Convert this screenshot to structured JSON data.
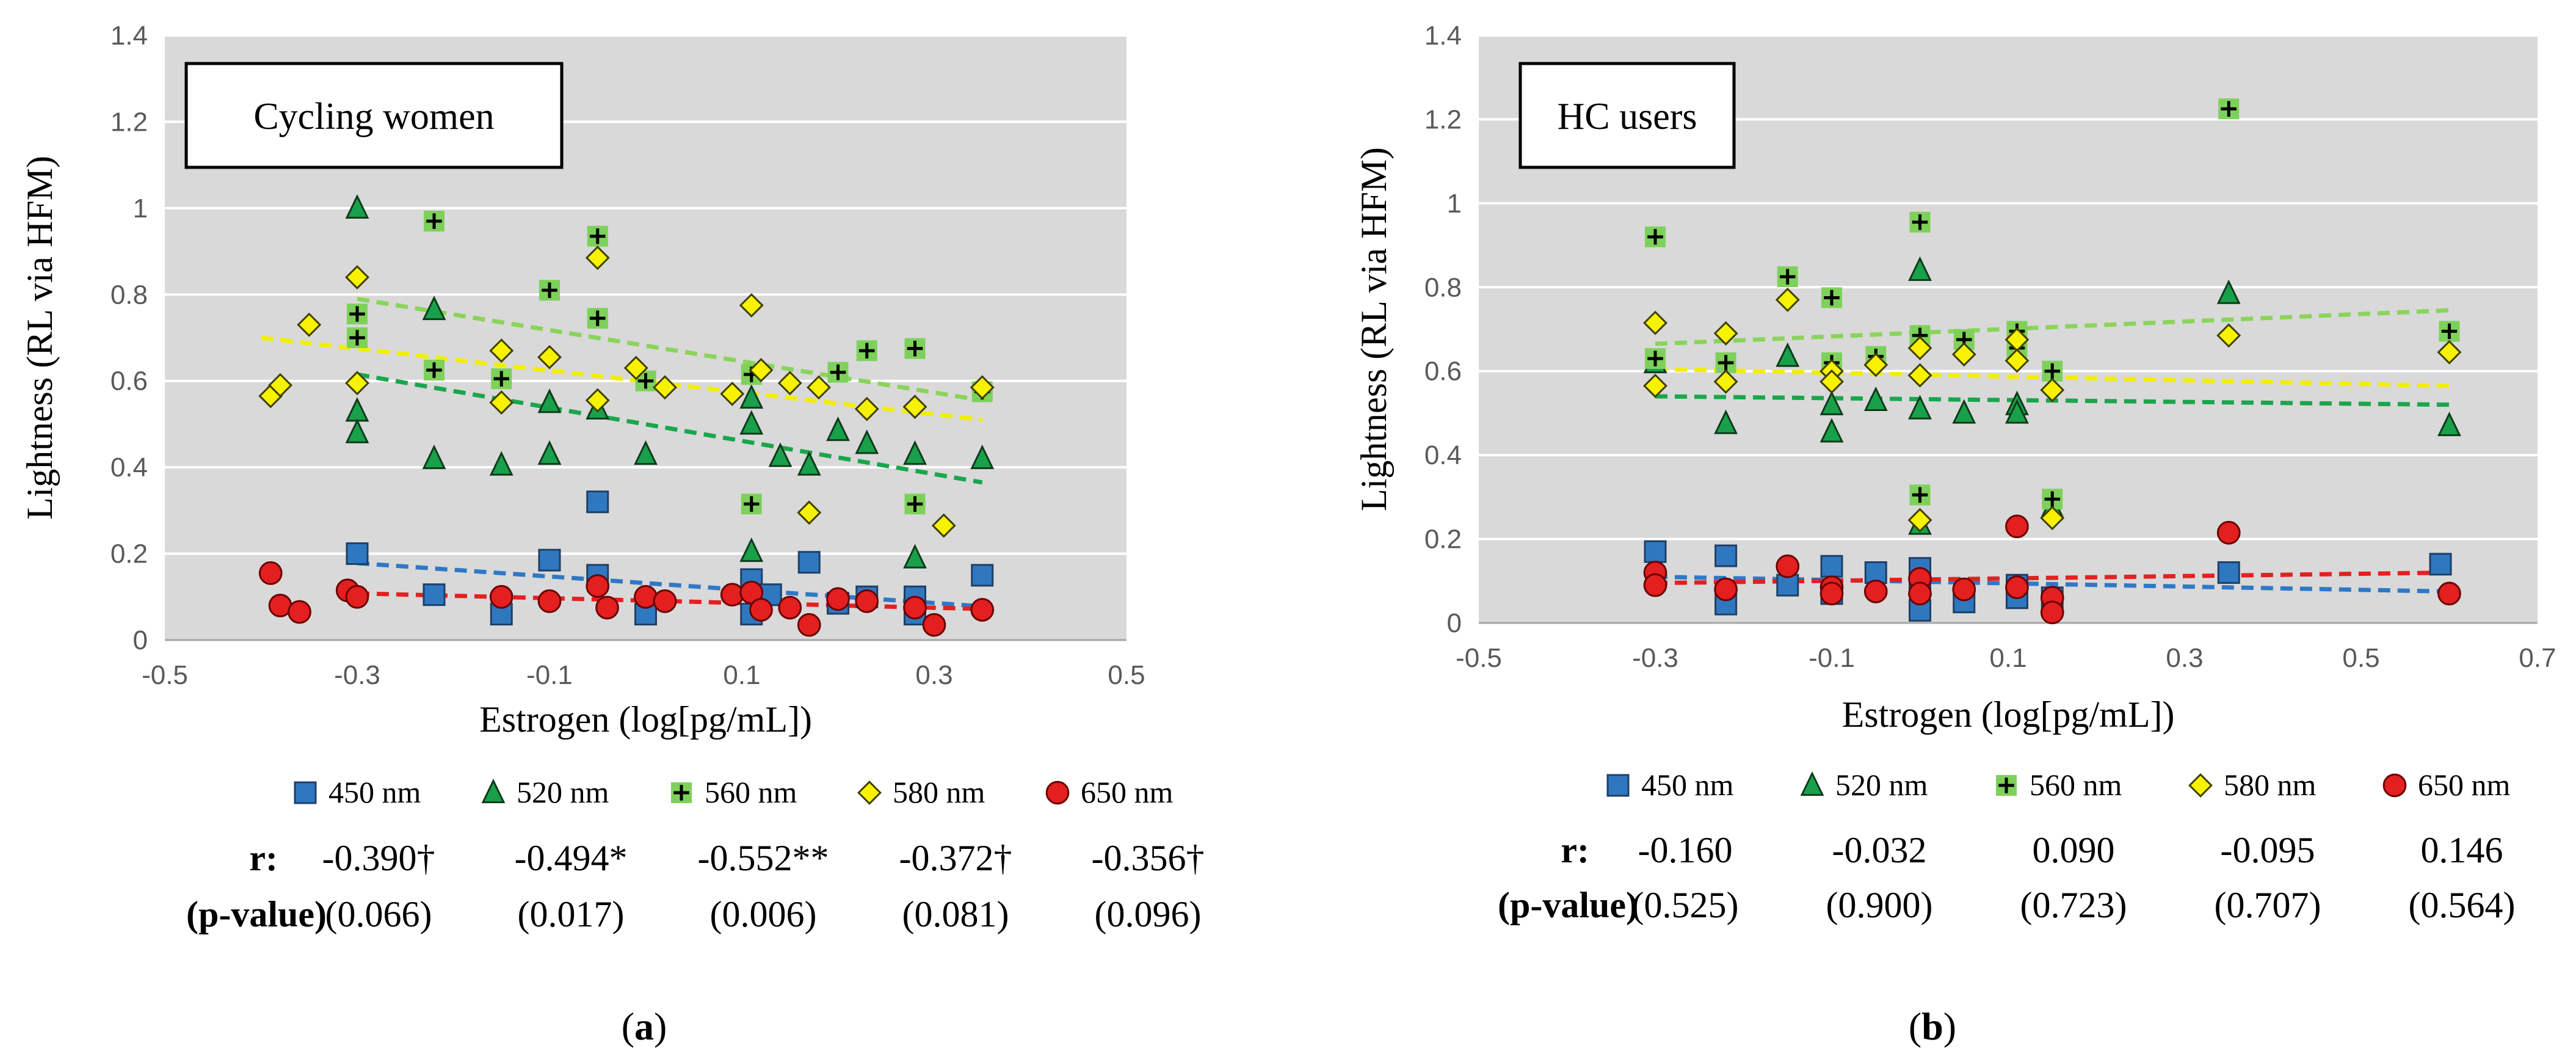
{
  "colors": {
    "plot_bg": "#d9d9d9",
    "grid": "#ffffff",
    "450 nm": "#2f78c0",
    "520 nm": "#19a04a",
    "560 nm": "#7dd15a",
    "580 nm": "#f7f200",
    "650 nm": "#e31f1f",
    "trend_450": "#2e79c6",
    "trend_520": "#1aa64c",
    "trend_560": "#8ad45a",
    "trend_580": "#f2ee00",
    "trend_650": "#e52020"
  },
  "panels": [
    {
      "label": "(a)",
      "label_letter": "a",
      "inset_title": "Cycling women",
      "stats": {
        "r_label": "r:",
        "p_label": "(p-value)",
        "r_values": [
          "-0.390†",
          "-0.494*",
          "-0.552**",
          "-0.372†",
          "-0.356†"
        ],
        "p_values": [
          "(0.066)",
          "(0.017)",
          "(0.006)",
          "(0.081)",
          "(0.096)"
        ]
      }
    },
    {
      "label": "(b)",
      "label_letter": "b",
      "inset_title": "HC users",
      "stats": {
        "r_label": "r:",
        "p_label": "(p-value)",
        "r_values": [
          "-0.160",
          "-0.032",
          "0.090",
          "-0.095",
          "0.146"
        ],
        "p_values": [
          "(0.525)",
          "(0.900)",
          "(0.723)",
          "(0.707)",
          "(0.564)"
        ]
      }
    }
  ],
  "chart_data": [
    {
      "type": "scatter",
      "title": "Cycling women",
      "xlabel": "Estrogen (log[pg/mL])",
      "ylabel": "Lightness (RL via HFM)",
      "xlim": [
        -0.5,
        0.5
      ],
      "ylim": [
        0,
        1.4
      ],
      "xticks": [
        -0.5,
        -0.3,
        -0.1,
        0.1,
        0.3,
        0.5
      ],
      "yticks": [
        0,
        0.2,
        0.4,
        0.6,
        0.8,
        1,
        1.2,
        1.4
      ],
      "xtick_labels": [
        "-0.5",
        "-0.3",
        "-0.1",
        "0.1",
        "0.3",
        "0.5"
      ],
      "ytick_labels": [
        "0",
        "0.2",
        "0.4",
        "0.6",
        "0.8",
        "1",
        "1.2",
        "1.4"
      ],
      "grid": true,
      "legend_position": "bottom",
      "series": [
        {
          "name": "450 nm",
          "marker": "square",
          "x": [
            -0.3,
            -0.22,
            -0.15,
            -0.1,
            -0.05,
            -0.05,
            0.0,
            0.11,
            0.11,
            0.13,
            0.17,
            0.2,
            0.23,
            0.28,
            0.28,
            0.35
          ],
          "y": [
            0.2,
            0.105,
            0.06,
            0.185,
            0.15,
            0.32,
            0.06,
            0.14,
            0.06,
            0.105,
            0.18,
            0.085,
            0.1,
            0.1,
            0.06,
            0.15
          ],
          "trend": [
            [
              -0.3,
              0.178
            ],
            [
              0.35,
              0.078
            ]
          ]
        },
        {
          "name": "520 nm",
          "marker": "triangle",
          "x": [
            -0.3,
            -0.3,
            -0.3,
            -0.22,
            -0.22,
            -0.15,
            -0.1,
            -0.1,
            -0.05,
            0.0,
            0.11,
            0.11,
            0.11,
            0.14,
            0.17,
            0.2,
            0.23,
            0.28,
            0.28,
            0.35
          ],
          "y": [
            1.0,
            0.53,
            0.48,
            0.765,
            0.42,
            0.405,
            0.55,
            0.43,
            0.535,
            0.43,
            0.56,
            0.5,
            0.205,
            0.425,
            0.405,
            0.485,
            0.455,
            0.43,
            0.19,
            0.42
          ],
          "trend": [
            [
              -0.3,
              0.615
            ],
            [
              0.35,
              0.365
            ]
          ]
        },
        {
          "name": "560 nm",
          "marker": "plus-square",
          "x": [
            -0.3,
            -0.3,
            -0.22,
            -0.22,
            -0.15,
            -0.1,
            -0.05,
            -0.05,
            0.0,
            0.11,
            0.11,
            0.2,
            0.23,
            0.28,
            0.28,
            0.35
          ],
          "y": [
            0.755,
            0.7,
            0.97,
            0.625,
            0.605,
            0.81,
            0.935,
            0.745,
            0.6,
            0.615,
            0.315,
            0.62,
            0.67,
            0.675,
            0.315,
            0.575
          ],
          "trend": [
            [
              -0.3,
              0.79
            ],
            [
              0.35,
              0.555
            ]
          ]
        },
        {
          "name": "580 nm",
          "marker": "diamond",
          "x": [
            -0.39,
            -0.38,
            -0.35,
            -0.3,
            -0.3,
            -0.15,
            -0.15,
            -0.1,
            -0.05,
            -0.05,
            -0.01,
            0.02,
            0.09,
            0.11,
            0.12,
            0.15,
            0.17,
            0.18,
            0.23,
            0.28,
            0.31,
            0.35
          ],
          "y": [
            0.565,
            0.59,
            0.73,
            0.84,
            0.595,
            0.67,
            0.55,
            0.655,
            0.885,
            0.555,
            0.63,
            0.585,
            0.57,
            0.775,
            0.625,
            0.595,
            0.295,
            0.585,
            0.535,
            0.54,
            0.265,
            0.585
          ],
          "trend": [
            [
              -0.4,
              0.7
            ],
            [
              0.35,
              0.51
            ]
          ]
        },
        {
          "name": "650 nm",
          "marker": "circle",
          "x": [
            -0.39,
            -0.38,
            -0.36,
            -0.31,
            -0.3,
            -0.15,
            -0.1,
            -0.05,
            -0.04,
            0.0,
            0.02,
            0.09,
            0.11,
            0.12,
            0.15,
            0.17,
            0.2,
            0.23,
            0.28,
            0.3,
            0.35
          ],
          "y": [
            0.155,
            0.08,
            0.065,
            0.115,
            0.1,
            0.1,
            0.09,
            0.125,
            0.075,
            0.1,
            0.09,
            0.105,
            0.11,
            0.07,
            0.075,
            0.035,
            0.095,
            0.09,
            0.075,
            0.035,
            0.07
          ],
          "trend": [
            [
              -0.3,
              0.108
            ],
            [
              0.35,
              0.072
            ]
          ]
        }
      ]
    },
    {
      "type": "scatter",
      "title": "HC users",
      "xlabel": "Estrogen (log[pg/mL])",
      "ylabel": "Lightness (RL via HFM)",
      "xlim": [
        -0.5,
        0.7
      ],
      "ylim": [
        0,
        1.4
      ],
      "xticks": [
        -0.5,
        -0.3,
        -0.1,
        0.1,
        0.3,
        0.5,
        0.7
      ],
      "yticks": [
        0,
        0.2,
        0.4,
        0.6,
        0.8,
        1,
        1.2,
        1.4
      ],
      "xtick_labels": [
        "-0.5",
        "-0.3",
        "-0.1",
        "0.1",
        "0.3",
        "0.5",
        "0.7"
      ],
      "ytick_labels": [
        "0",
        "0.2",
        "0.4",
        "0.6",
        "0.8",
        "1",
        "1.2",
        "1.4"
      ],
      "grid": true,
      "legend_position": "bottom",
      "series": [
        {
          "name": "450 nm",
          "marker": "square",
          "x": [
            -0.3,
            -0.22,
            -0.22,
            -0.15,
            -0.1,
            -0.1,
            -0.05,
            0.0,
            0.0,
            0.0,
            0.05,
            0.11,
            0.11,
            0.15,
            0.35,
            0.59
          ],
          "y": [
            0.17,
            0.16,
            0.045,
            0.09,
            0.135,
            0.07,
            0.12,
            0.13,
            0.09,
            0.03,
            0.05,
            0.09,
            0.06,
            0.06,
            0.12,
            0.14
          ],
          "trend": [
            [
              -0.3,
              0.11
            ],
            [
              0.6,
              0.075
            ]
          ]
        },
        {
          "name": "520 nm",
          "marker": "triangle",
          "x": [
            -0.3,
            -0.22,
            -0.15,
            -0.1,
            -0.1,
            -0.05,
            0.0,
            0.0,
            0.0,
            0.05,
            0.11,
            0.11,
            0.15,
            0.35,
            0.6
          ],
          "y": [
            0.62,
            0.475,
            0.635,
            0.52,
            0.455,
            0.53,
            0.84,
            0.51,
            0.235,
            0.5,
            0.52,
            0.5,
            0.275,
            0.785,
            0.47
          ],
          "trend": [
            [
              -0.3,
              0.54
            ],
            [
              0.6,
              0.52
            ]
          ]
        },
        {
          "name": "560 nm",
          "marker": "plus-square",
          "x": [
            -0.3,
            -0.3,
            -0.22,
            -0.15,
            -0.1,
            -0.1,
            -0.05,
            0.0,
            0.0,
            0.0,
            0.05,
            0.11,
            0.11,
            0.15,
            0.15,
            0.35,
            0.6
          ],
          "y": [
            0.92,
            0.63,
            0.62,
            0.825,
            0.775,
            0.62,
            0.635,
            0.955,
            0.685,
            0.305,
            0.675,
            0.695,
            0.655,
            0.6,
            0.295,
            1.225,
            0.695
          ],
          "trend": [
            [
              -0.3,
              0.665
            ],
            [
              0.6,
              0.745
            ]
          ]
        },
        {
          "name": "580 nm",
          "marker": "diamond",
          "x": [
            -0.3,
            -0.3,
            -0.22,
            -0.22,
            -0.15,
            -0.1,
            -0.1,
            -0.05,
            0.0,
            0.0,
            0.0,
            0.05,
            0.11,
            0.11,
            0.15,
            0.15,
            0.35,
            0.6
          ],
          "y": [
            0.715,
            0.565,
            0.69,
            0.575,
            0.77,
            0.6,
            0.575,
            0.615,
            0.655,
            0.59,
            0.245,
            0.64,
            0.675,
            0.625,
            0.555,
            0.25,
            0.685,
            0.645
          ],
          "trend": [
            [
              -0.3,
              0.605
            ],
            [
              0.6,
              0.565
            ]
          ]
        },
        {
          "name": "650 nm",
          "marker": "circle",
          "x": [
            -0.3,
            -0.3,
            -0.22,
            -0.15,
            -0.1,
            -0.1,
            -0.05,
            0.0,
            0.0,
            0.05,
            0.11,
            0.11,
            0.15,
            0.15,
            0.35,
            0.6
          ],
          "y": [
            0.12,
            0.09,
            0.08,
            0.135,
            0.085,
            0.07,
            0.075,
            0.105,
            0.07,
            0.08,
            0.23,
            0.085,
            0.06,
            0.025,
            0.215,
            0.07
          ],
          "trend": [
            [
              -0.3,
              0.095
            ],
            [
              0.6,
              0.12
            ]
          ]
        }
      ]
    }
  ]
}
